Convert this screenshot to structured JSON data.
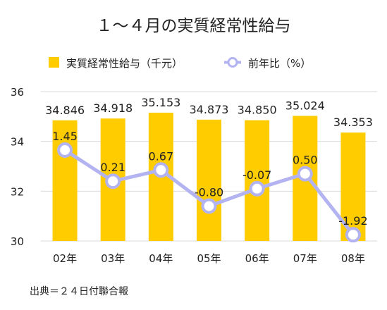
{
  "chart_data": {
    "type": "bar",
    "title": "１～４月の実質経常性給与",
    "categories": [
      "02年",
      "03年",
      "04年",
      "05年",
      "06年",
      "07年",
      "08年"
    ],
    "ylim": [
      30,
      36
    ],
    "yticks": [
      30,
      32,
      34,
      36
    ],
    "grid": true,
    "legend_position": "top",
    "series": [
      {
        "name": "実質経常性給与（千元）",
        "type": "bar",
        "color": "#FFCC00",
        "values": [
          34.846,
          34.918,
          35.153,
          34.873,
          34.85,
          35.024,
          34.353
        ],
        "labels": [
          "34.846",
          "34.918",
          "35.153",
          "34.873",
          "34.850",
          "35.024",
          "34.353"
        ]
      },
      {
        "name": "前年比（%）",
        "type": "line",
        "color": "#B3B3F2",
        "values": [
          1.45,
          0.21,
          0.67,
          -0.8,
          -0.07,
          0.5,
          -1.92
        ],
        "labels": [
          "1.45",
          "0.21",
          "0.67",
          "-0.80",
          "-0.07",
          "0.50",
          "-1.92"
        ],
        "plotted_on_left_axis": [
          33.65,
          32.4,
          32.85,
          31.4,
          32.1,
          32.7,
          30.25
        ]
      }
    ]
  },
  "source": "出典＝２４日付聯合報"
}
